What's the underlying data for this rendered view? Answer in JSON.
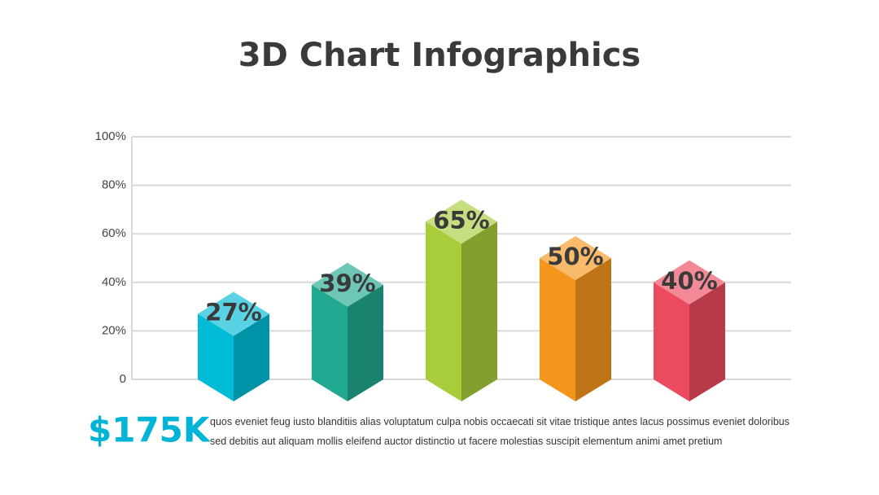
{
  "chart_data": {
    "type": "bar3d",
    "title": "3D Chart Infographics",
    "categories": [
      null,
      null,
      null,
      null,
      null
    ],
    "values": [
      27,
      39,
      65,
      50,
      40
    ],
    "value_labels": [
      "27%",
      "39%",
      "65%",
      "50%",
      "40%"
    ],
    "colors": [
      "#00bcd6",
      "#20a890",
      "#a8cc3a",
      "#f5961c",
      "#ec4a5e"
    ],
    "ylim": [
      0,
      100
    ],
    "yticks": [
      0,
      {
        "value": 20,
        "label": "20%"
      },
      {
        "value": 40,
        "label": "40%"
      },
      {
        "value": 60,
        "label": "60%"
      },
      {
        "value": 80,
        "label": "80%"
      },
      {
        "value": 100,
        "label": "100%"
      }
    ],
    "grid": true
  },
  "highlight": "$175K",
  "description": "quos eveniet feug iusto blanditiis alias voluptatum culpa nobis occaecati sit vitae tristique antes lacus possimus eveniet doloribus sed debitis aut aliquam mollis eleifend auctor distinctio ut facere molestias suscipit elementum animi amet pretium"
}
